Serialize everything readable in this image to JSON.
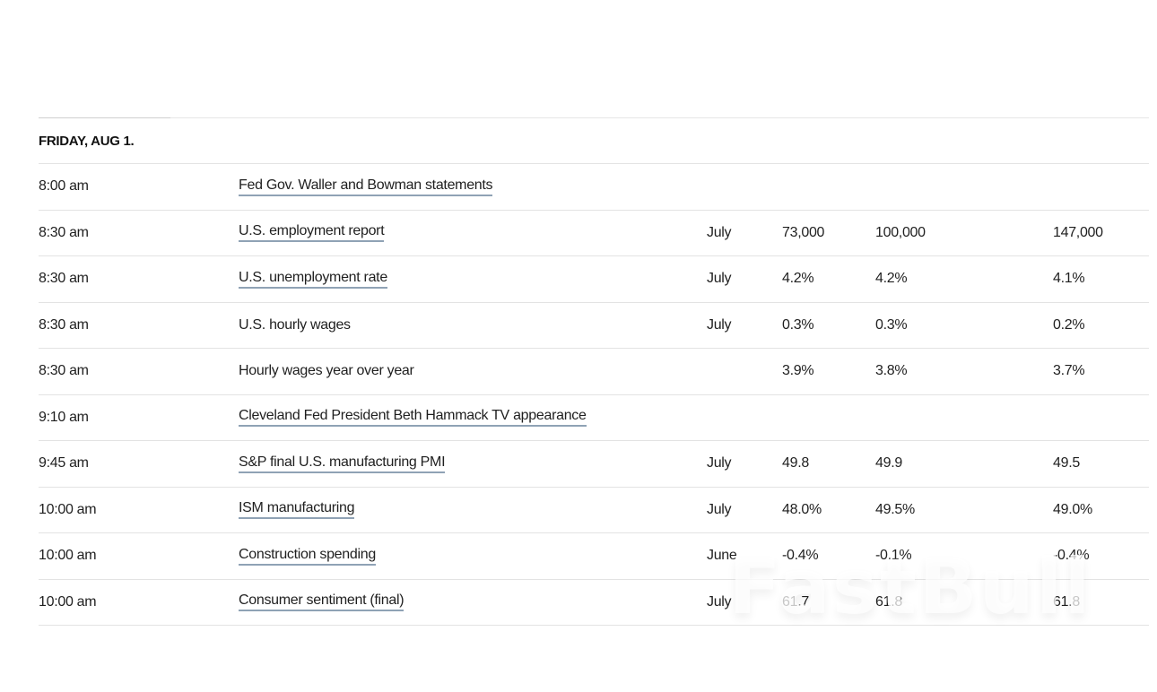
{
  "day": {
    "title": "FRIDAY, AUG 1."
  },
  "rows": [
    {
      "time": "8:00 am",
      "event": "Fed Gov. Waller and Bowman statements",
      "linked": true,
      "period": "",
      "actual": "",
      "forecast": "",
      "previous": ""
    },
    {
      "time": "8:30 am",
      "event": "U.S. employment report",
      "linked": true,
      "period": "July",
      "actual": "73,000",
      "forecast": "100,000",
      "previous": "147,000"
    },
    {
      "time": "8:30 am",
      "event": "U.S. unemployment rate",
      "linked": true,
      "period": "July",
      "actual": "4.2%",
      "forecast": "4.2%",
      "previous": "4.1%"
    },
    {
      "time": "8:30 am",
      "event": "U.S. hourly wages",
      "linked": false,
      "period": "July",
      "actual": "0.3%",
      "forecast": "0.3%",
      "previous": "0.2%"
    },
    {
      "time": "8:30 am",
      "event": "Hourly wages year over year",
      "linked": false,
      "period": "",
      "actual": "3.9%",
      "forecast": "3.8%",
      "previous": "3.7%"
    },
    {
      "time": "9:10 am",
      "event": "Cleveland Fed President Beth Hammack TV appearance",
      "linked": true,
      "period": "",
      "actual": "",
      "forecast": "",
      "previous": ""
    },
    {
      "time": "9:45 am",
      "event": "S&P final U.S. manufacturing PMI",
      "linked": true,
      "period": "July",
      "actual": "49.8",
      "forecast": "49.9",
      "previous": "49.5"
    },
    {
      "time": "10:00 am",
      "event": "ISM manufacturing",
      "linked": true,
      "period": "July",
      "actual": "48.0%",
      "forecast": "49.5%",
      "previous": "49.0%"
    },
    {
      "time": "10:00 am",
      "event": "Construction spending",
      "linked": true,
      "period": "June",
      "actual": "-0.4%",
      "forecast": "-0.1%",
      "previous": "-0.4%"
    },
    {
      "time": "10:00 am",
      "event": "Consumer sentiment (final)",
      "linked": true,
      "period": "July",
      "actual": "61.7",
      "forecast": "61.8",
      "previous": "61.8"
    }
  ],
  "watermark": "FastBull",
  "colors": {
    "link_underline": "#8fa2b5",
    "divider": "#e3e3e3",
    "text": "#1f1f1f"
  }
}
